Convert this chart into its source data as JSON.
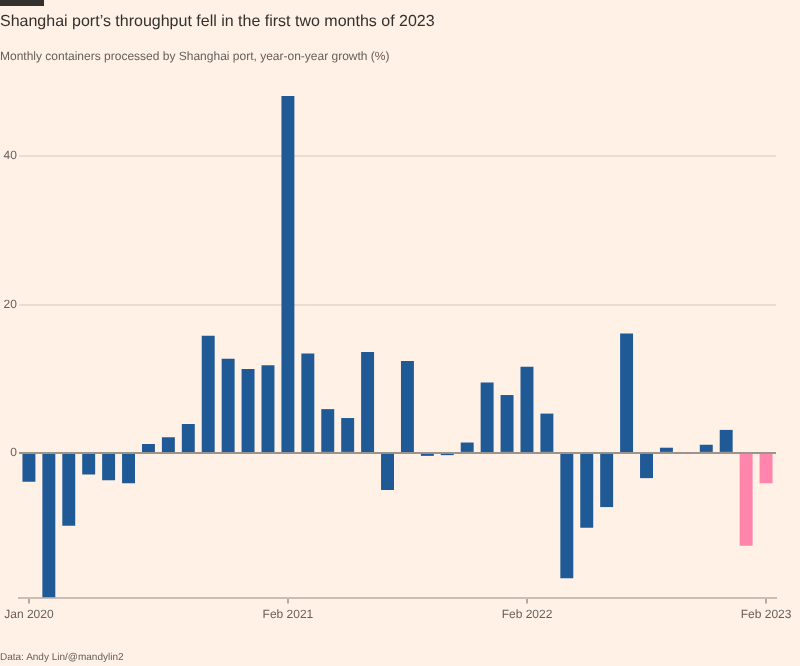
{
  "chart_data": {
    "type": "bar",
    "title": "Shanghai port’s throughput fell in the first two months of 2023",
    "subtitle": "Monthly containers processed by Shanghai port, year-on-year growth (%)",
    "categories": [
      "Jan 2020",
      null,
      null,
      null,
      null,
      null,
      null,
      null,
      null,
      null,
      null,
      null,
      null,
      "Feb 2021",
      null,
      null,
      null,
      null,
      null,
      null,
      null,
      null,
      null,
      null,
      null,
      "Feb 2022",
      null,
      null,
      null,
      null,
      null,
      null,
      null,
      null,
      null,
      null,
      null,
      "Feb 2023"
    ],
    "values": [
      -3.9,
      -19.5,
      -9.8,
      -2.9,
      -3.7,
      -4.1,
      1.2,
      2.1,
      3.9,
      15.8,
      12.7,
      11.3,
      11.8,
      48.1,
      13.4,
      5.9,
      4.7,
      13.6,
      -5.0,
      12.4,
      -0.4,
      -0.3,
      1.4,
      9.5,
      7.8,
      11.6,
      5.3,
      -16.9,
      -10.1,
      -7.3,
      16.1,
      -3.4,
      0.7,
      0,
      1.1,
      3.1,
      -12.5,
      -4.1
    ],
    "colors": [
      "#1f5a96",
      "#1f5a96",
      "#1f5a96",
      "#1f5a96",
      "#1f5a96",
      "#1f5a96",
      "#1f5a96",
      "#1f5a96",
      "#1f5a96",
      "#1f5a96",
      "#1f5a96",
      "#1f5a96",
      "#1f5a96",
      "#1f5a96",
      "#1f5a96",
      "#1f5a96",
      "#1f5a96",
      "#1f5a96",
      "#1f5a96",
      "#1f5a96",
      "#1f5a96",
      "#1f5a96",
      "#1f5a96",
      "#1f5a96",
      "#1f5a96",
      "#1f5a96",
      "#1f5a96",
      "#1f5a96",
      "#1f5a96",
      "#1f5a96",
      "#1f5a96",
      "#1f5a96",
      "#1f5a96",
      "#1f5a96",
      "#1f5a96",
      "#1f5a96",
      "#ff85ad",
      "#ff85ad"
    ],
    "ylim": [
      -19.5,
      48.1
    ],
    "yticks": [
      0,
      20,
      40
    ],
    "grid": "y",
    "annotations": [
      "Data: Andy Lin/@mandylin2"
    ]
  }
}
